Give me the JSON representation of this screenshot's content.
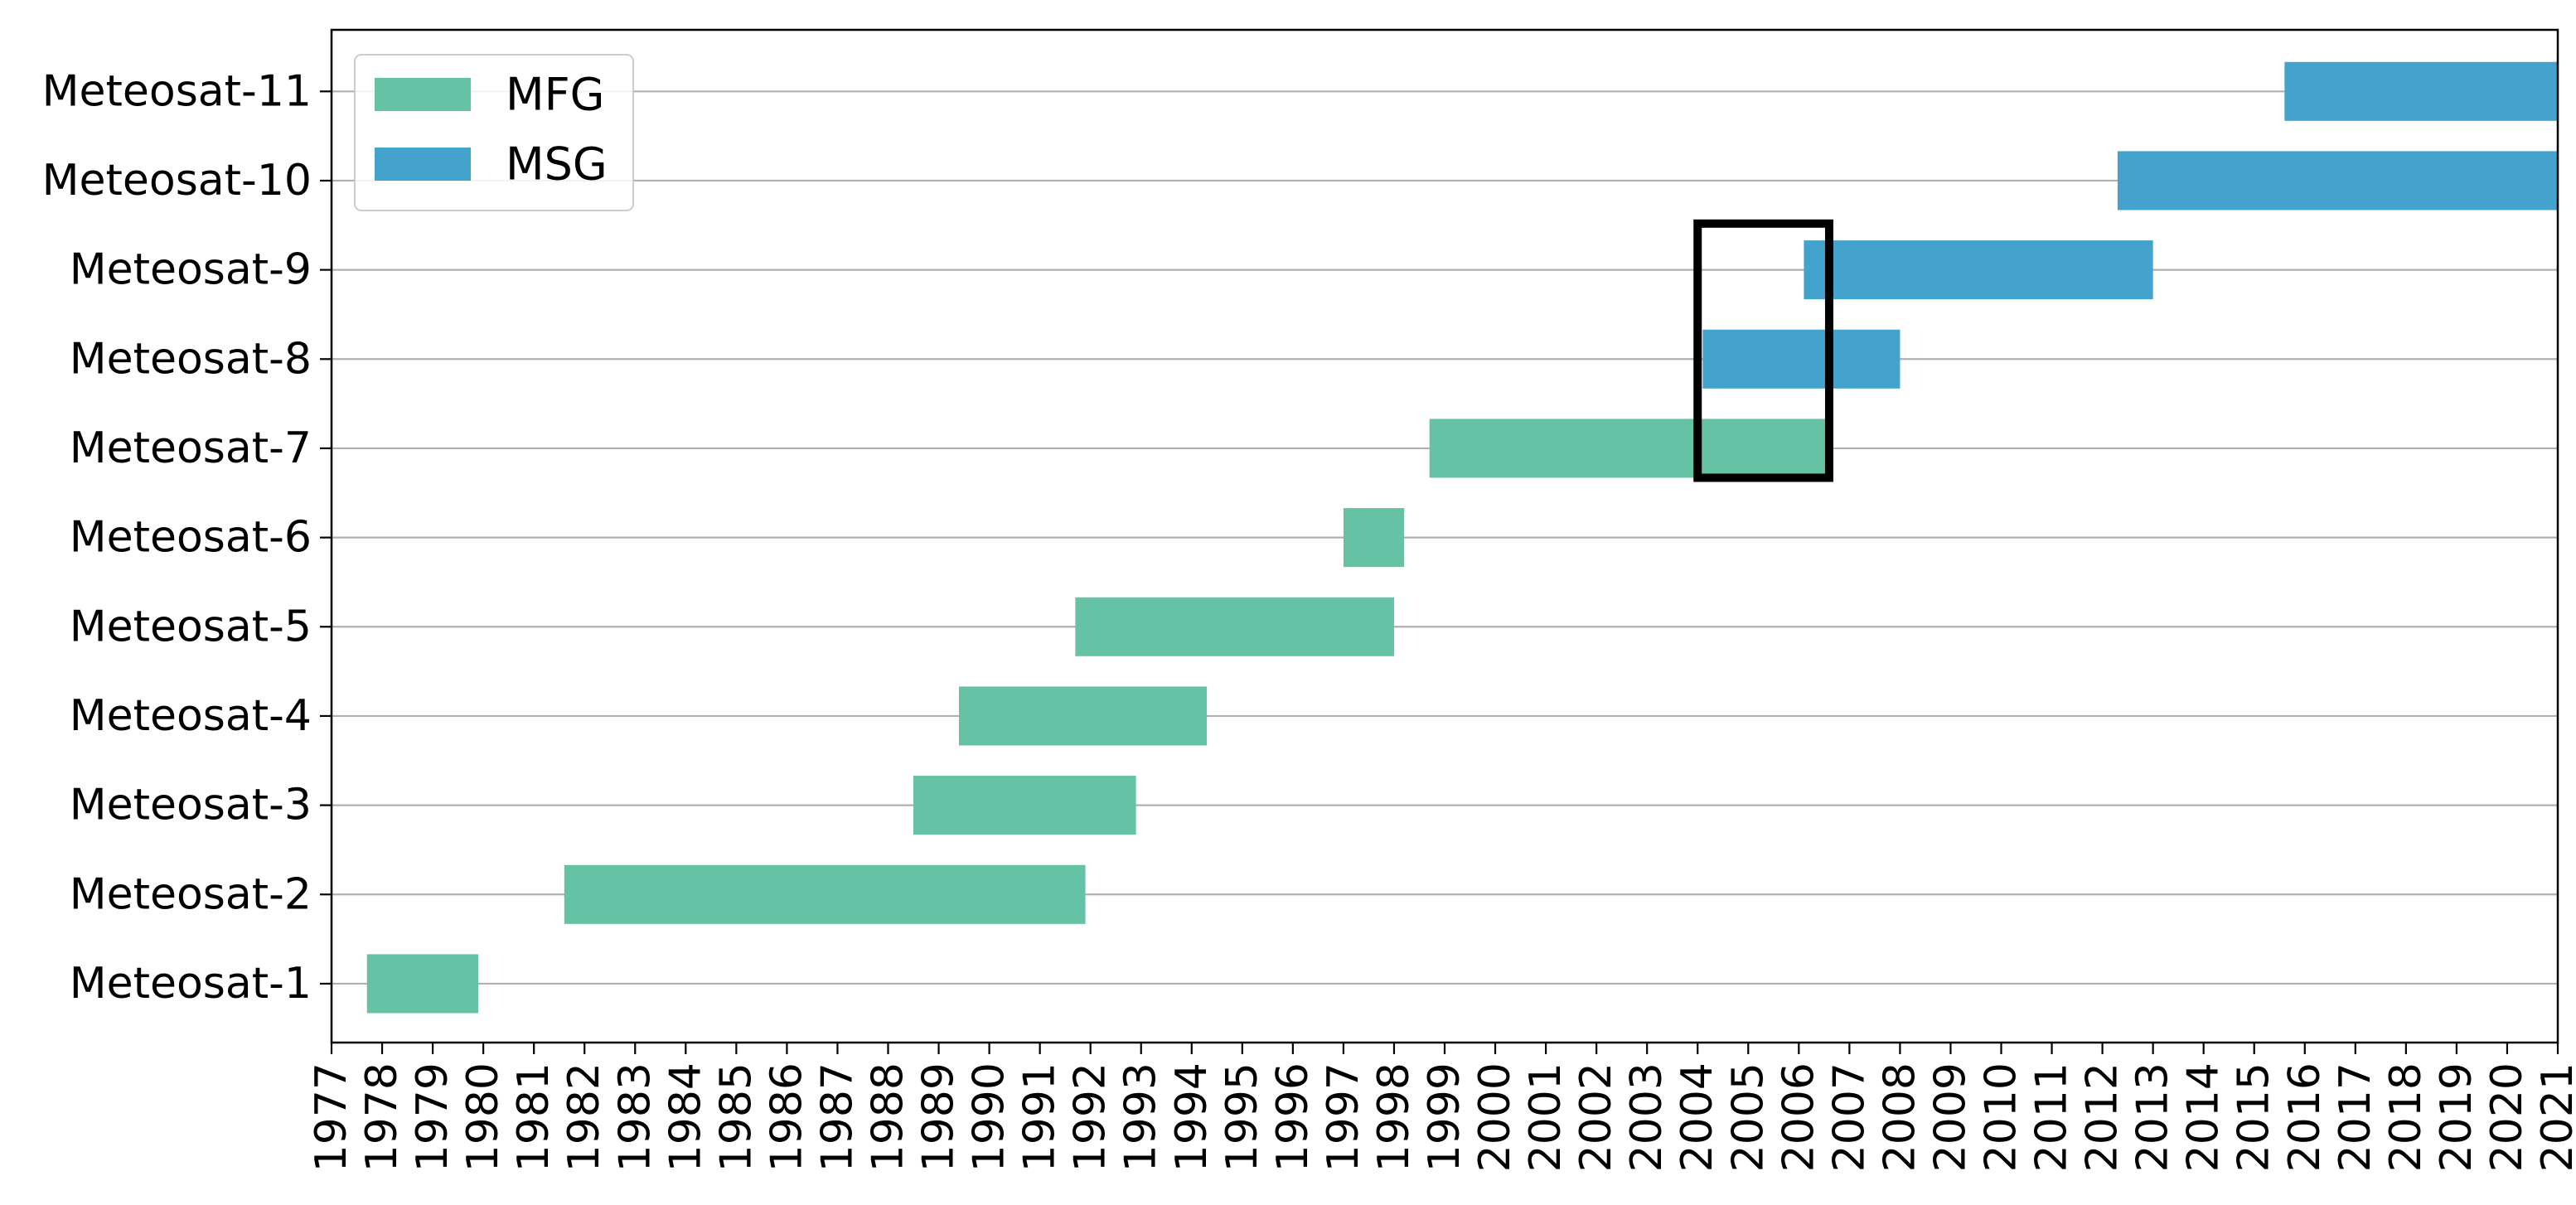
{
  "chart_data": {
    "type": "bar",
    "orientation": "horizontal",
    "subtype": "gantt",
    "title": "",
    "xlabel": "",
    "ylabel": "",
    "x_unit": "year",
    "xlim": [
      1977,
      2021
    ],
    "x_ticks": [
      1977,
      1978,
      1979,
      1980,
      1981,
      1982,
      1983,
      1984,
      1985,
      1986,
      1987,
      1988,
      1989,
      1990,
      1991,
      1992,
      1993,
      1994,
      1995,
      1996,
      1997,
      1998,
      1999,
      2000,
      2001,
      2002,
      2003,
      2004,
      2005,
      2006,
      2007,
      2008,
      2009,
      2010,
      2011,
      2012,
      2013,
      2014,
      2015,
      2016,
      2017,
      2018,
      2019,
      2020,
      2021
    ],
    "categories": [
      "Meteosat-1",
      "Meteosat-2",
      "Meteosat-3",
      "Meteosat-4",
      "Meteosat-5",
      "Meteosat-6",
      "Meteosat-7",
      "Meteosat-8",
      "Meteosat-9",
      "Meteosat-10",
      "Meteosat-11"
    ],
    "grid": "horizontal",
    "legend_position": "top-left",
    "series": [
      {
        "name": "MFG",
        "color": "#66c2a5"
      },
      {
        "name": "MSG",
        "color": "#44a3cd"
      }
    ],
    "bars": [
      {
        "category": "Meteosat-1",
        "series": "MFG",
        "start": 1977.7,
        "end": 1979.9
      },
      {
        "category": "Meteosat-2",
        "series": "MFG",
        "start": 1981.6,
        "end": 1991.9
      },
      {
        "category": "Meteosat-3",
        "series": "MFG",
        "start": 1988.5,
        "end": 1992.9
      },
      {
        "category": "Meteosat-4",
        "series": "MFG",
        "start": 1989.4,
        "end": 1994.3
      },
      {
        "category": "Meteosat-5",
        "series": "MFG",
        "start": 1991.7,
        "end": 1998.0
      },
      {
        "category": "Meteosat-6",
        "series": "MFG",
        "start": 1997.0,
        "end": 1998.2
      },
      {
        "category": "Meteosat-7",
        "series": "MFG",
        "start": 1998.7,
        "end": 2006.6
      },
      {
        "category": "Meteosat-8",
        "series": "MSG",
        "start": 2004.1,
        "end": 2008.0
      },
      {
        "category": "Meteosat-9",
        "series": "MSG",
        "start": 2006.1,
        "end": 2013.0
      },
      {
        "category": "Meteosat-10",
        "series": "MSG",
        "start": 2012.3,
        "end": 2021.0
      },
      {
        "category": "Meteosat-11",
        "series": "MSG",
        "start": 2015.6,
        "end": 2021.0
      }
    ],
    "annotations": [
      {
        "type": "rectangle-outline",
        "color": "#000000",
        "x_start": 2004.0,
        "x_end": 2006.6,
        "category_top": "Meteosat-9",
        "category_bottom": "Meteosat-7"
      }
    ]
  }
}
